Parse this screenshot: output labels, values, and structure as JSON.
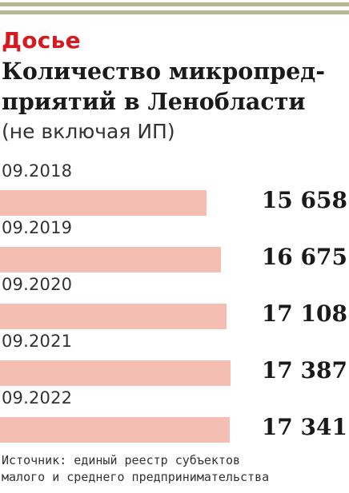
{
  "header": {
    "kicker": "Досье",
    "title": "Количество микропред-приятий в Ленобласти",
    "subtitle": "(не включая ИП)",
    "accent_color": "#d71920",
    "stripe_color": "#b7b891"
  },
  "chart_data": {
    "type": "bar",
    "orientation": "horizontal",
    "categories": [
      "09.2018",
      "09.2019",
      "09.2020",
      "09.2021",
      "09.2022"
    ],
    "values": [
      15658,
      16675,
      17108,
      17387,
      17341
    ],
    "value_labels": [
      "15 658",
      "16 675",
      "17 108",
      "17 387",
      "17 341"
    ],
    "bar_color": "#f4bfb2"
  },
  "footer": {
    "source_line1": "Источник: единый реестр субъектов",
    "source_line2": "малого и среднего предпринимательства"
  }
}
